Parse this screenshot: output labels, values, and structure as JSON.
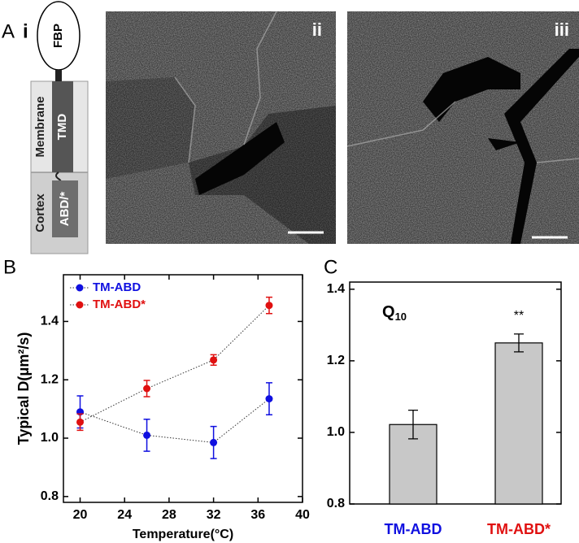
{
  "panel_labels": [
    "A",
    "B",
    "C"
  ],
  "panel_a": {
    "sublabels": [
      "i",
      "ii",
      "iii"
    ],
    "diagram": {
      "head": "FBP",
      "domains": [
        "TMD",
        "ABD/*"
      ],
      "regions": [
        "Membrane",
        "Cortex"
      ]
    }
  },
  "chart_data": [
    {
      "type": "line",
      "xlabel": "Temperature(°C)",
      "ylabel": "Typical D(μm²/s)",
      "x": [
        20,
        26,
        32,
        37
      ],
      "series": [
        {
          "name": "TM-ABD",
          "color": "#1010e0",
          "values": [
            1.09,
            1.01,
            0.985,
            1.135
          ],
          "errors": [
            0.055,
            0.055,
            0.055,
            0.055
          ]
        },
        {
          "name": "TM-ABD*",
          "color": "#e01010",
          "values": [
            1.055,
            1.17,
            1.268,
            1.455
          ],
          "errors": [
            0.028,
            0.028,
            0.018,
            0.028
          ]
        }
      ],
      "xlim": [
        18.5,
        40
      ],
      "xticks": [
        20,
        24,
        28,
        32,
        36,
        40
      ],
      "ylim": [
        0.78,
        1.56
      ],
      "yticks": [
        0.8,
        {
          "value": 1,
          "label": "1.0"
        },
        1.2,
        1.4
      ],
      "legend": "upper-left"
    },
    {
      "type": "bar",
      "title": "Q",
      "title_subscript": "10",
      "categories": [
        "TM-ABD",
        "TM-ABD*"
      ],
      "label_colors": [
        "#1010e0",
        "#e01010"
      ],
      "values": [
        1.022,
        1.25
      ],
      "errors": [
        0.04,
        0.025
      ],
      "color": "#c8c8c8",
      "annotations": [
        "",
        "**"
      ],
      "ylim": [
        0.8,
        1.42
      ],
      "yticks": [
        0.8,
        {
          "value": 1,
          "label": "1.0"
        },
        1.2,
        1.4
      ]
    }
  ]
}
